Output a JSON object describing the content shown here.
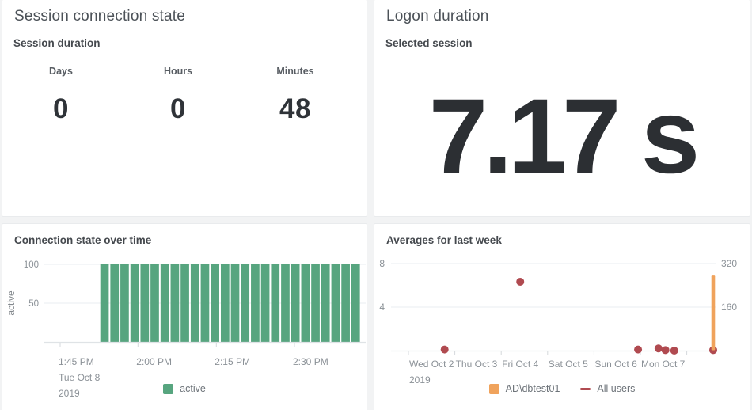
{
  "panels": {
    "session_state": {
      "title": "Session connection state",
      "subtitle": "Session duration",
      "columns": [
        {
          "label": "Days",
          "value": "0"
        },
        {
          "label": "Hours",
          "value": "0"
        },
        {
          "label": "Minutes",
          "value": "48"
        }
      ]
    },
    "logon_duration": {
      "title": "Logon duration",
      "subtitle": "Selected session",
      "value": "7.17 s"
    }
  },
  "colors": {
    "green": "#57a57f",
    "red": "#b04a50",
    "orange": "#f0a35c",
    "background": "#f2f3f4",
    "gridline": "#e9edf0",
    "axis_line": "#dfe3e6",
    "tick_mark": "#d5d9dc"
  },
  "chart_data": [
    {
      "id": "connection-state-over-time",
      "type": "bar",
      "title": "Connection state over time",
      "ylabel": "active",
      "ylim": [
        0,
        100
      ],
      "yticks": [
        100,
        50
      ],
      "xticks": [
        "1:45 PM\nTue Oct 8\n2019",
        "2:00 PM",
        "2:15 PM",
        "2:30 PM"
      ],
      "x_start": "1:52 PM Tue Oct 8 2019",
      "x_end": "2:42 PM Tue Oct 8 2019",
      "bar_interval_minutes": 2,
      "grid": true,
      "legend_position": "bottom",
      "series": [
        {
          "name": "active",
          "color": "#57a57f",
          "values": [
            100,
            100,
            100,
            100,
            100,
            100,
            100,
            100,
            100,
            100,
            100,
            100,
            100,
            100,
            100,
            100,
            100,
            100,
            100,
            100,
            100,
            100,
            100,
            100,
            100,
            100
          ]
        }
      ],
      "legend": [
        {
          "label": "active",
          "color": "#57a57f",
          "shape": "square"
        }
      ]
    },
    {
      "id": "averages-for-last-week",
      "type": "mixed",
      "title": "Averages for last week",
      "ylim_left": [
        0,
        8
      ],
      "yticks_left": [
        8,
        4
      ],
      "ylim_right": [
        0,
        320
      ],
      "yticks_right": [
        320,
        160
      ],
      "xticks": [
        "Wed Oct 2\n2019",
        "Thu Oct 3",
        "Fri Oct 4",
        "Sat Oct 5",
        "Sun Oct 6",
        "Mon Oct 7"
      ],
      "x_unit": "days since Wed Oct 2 2019",
      "grid": true,
      "legend_position": "bottom",
      "series": [
        {
          "name": "All users",
          "type": "scatter",
          "axis": "left",
          "color": "#b04a50",
          "points": [
            {
              "x": 0.78,
              "y": 0.1
            },
            {
              "x": 2.41,
              "y": 6.33
            },
            {
              "x": 4.95,
              "y": 0.1
            },
            {
              "x": 5.39,
              "y": 0.2
            },
            {
              "x": 5.54,
              "y": 0.05
            },
            {
              "x": 5.73,
              "y": 0.0
            },
            {
              "x": 6.57,
              "y": 0.05
            }
          ]
        },
        {
          "name": "AD\\dbtest01",
          "type": "bar",
          "axis": "right",
          "color": "#f0a35c",
          "points": [
            {
              "x": 6.57,
              "y": 276
            }
          ]
        }
      ],
      "legend": [
        {
          "label": "AD\\dbtest01",
          "color": "#f0a35c",
          "shape": "square"
        },
        {
          "label": "All users",
          "color": "#b04a50",
          "shape": "line"
        }
      ]
    }
  ]
}
